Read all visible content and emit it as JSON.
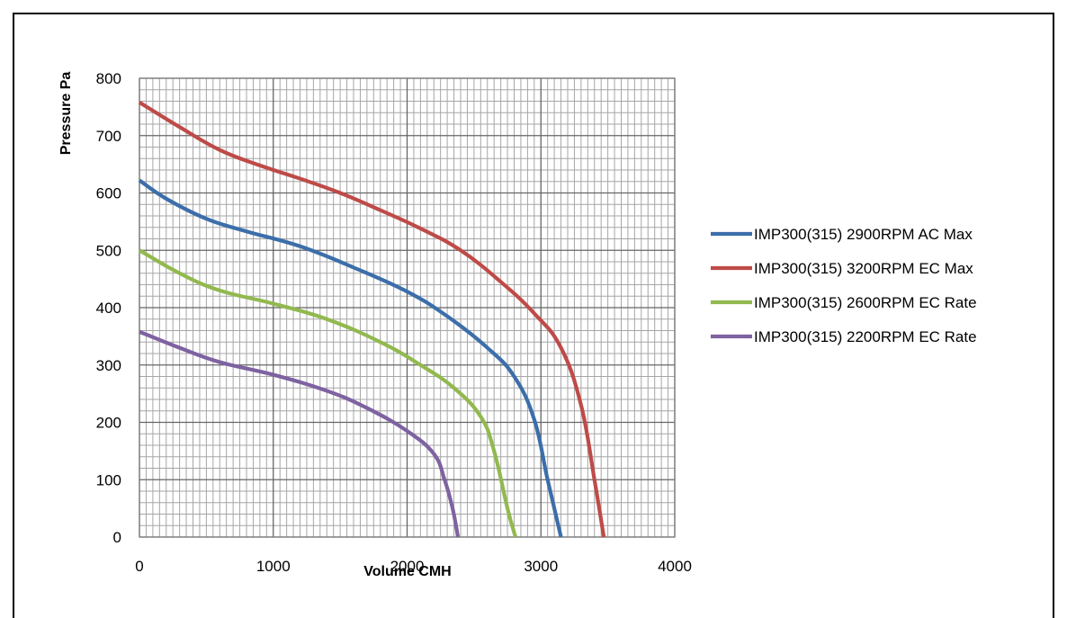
{
  "chart_data": {
    "type": "line",
    "title": "",
    "xlabel": "Volume CMH",
    "ylabel": "Pressure Pa",
    "xlim": [
      0,
      4000
    ],
    "ylim": [
      0,
      800
    ],
    "xticks": [
      0,
      1000,
      2000,
      3000,
      4000
    ],
    "yticks": [
      0,
      100,
      200,
      300,
      400,
      500,
      600,
      700,
      800
    ],
    "grid": true,
    "minor_grid": true,
    "legend_position": "right",
    "series": [
      {
        "name": "IMP300(315) 2900RPM AC Max",
        "color": "#3c6eaa",
        "points": [
          [
            0,
            622
          ],
          [
            200,
            590
          ],
          [
            500,
            555
          ],
          [
            800,
            533
          ],
          [
            1200,
            507
          ],
          [
            1600,
            470
          ],
          [
            2000,
            428
          ],
          [
            2300,
            385
          ],
          [
            2600,
            330
          ],
          [
            2800,
            280
          ],
          [
            2950,
            205
          ],
          [
            3050,
            100
          ],
          [
            3150,
            0
          ]
        ]
      },
      {
        "name": "IMP300(315) 3200RPM EC Max",
        "color": "#be4b48",
        "points": [
          [
            0,
            758
          ],
          [
            300,
            715
          ],
          [
            600,
            675
          ],
          [
            900,
            648
          ],
          [
            1200,
            625
          ],
          [
            1500,
            600
          ],
          [
            1800,
            570
          ],
          [
            2100,
            538
          ],
          [
            2400,
            500
          ],
          [
            2700,
            445
          ],
          [
            2950,
            390
          ],
          [
            3150,
            330
          ],
          [
            3300,
            230
          ],
          [
            3400,
            100
          ],
          [
            3470,
            0
          ]
        ]
      },
      {
        "name": "IMP300(315) 2600RPM EC Rate",
        "color": "#92b94f",
        "points": [
          [
            0,
            500
          ],
          [
            300,
            460
          ],
          [
            600,
            430
          ],
          [
            1000,
            407
          ],
          [
            1400,
            380
          ],
          [
            1800,
            340
          ],
          [
            2100,
            300
          ],
          [
            2350,
            260
          ],
          [
            2550,
            210
          ],
          [
            2650,
            150
          ],
          [
            2750,
            50
          ],
          [
            2810,
            0
          ]
        ]
      },
      {
        "name": "IMP300(315) 2200RPM EC Rate",
        "color": "#7e62a1",
        "points": [
          [
            0,
            358
          ],
          [
            300,
            330
          ],
          [
            600,
            305
          ],
          [
            1000,
            283
          ],
          [
            1400,
            255
          ],
          [
            1700,
            225
          ],
          [
            2000,
            185
          ],
          [
            2200,
            145
          ],
          [
            2280,
            100
          ],
          [
            2340,
            50
          ],
          [
            2380,
            0
          ]
        ]
      }
    ]
  }
}
